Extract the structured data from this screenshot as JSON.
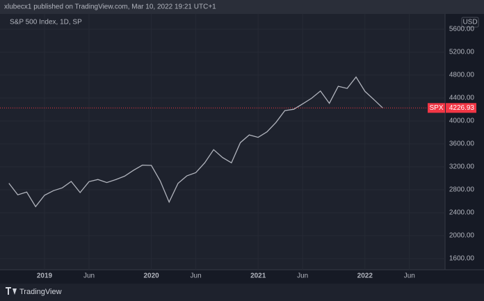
{
  "header": {
    "publisher": "xlubecx1 published on TradingView.com, Mar 10, 2022 19:21 UTC+1",
    "footer": "TradingView"
  },
  "chart_data": {
    "type": "line",
    "title": "S&P 500 Index, 1D, SP",
    "currency": "USD",
    "x": [
      "2018-09",
      "2018-10",
      "2018-11",
      "2018-12",
      "2019-01",
      "2019-02",
      "2019-03",
      "2019-04",
      "2019-05",
      "2019-06",
      "2019-07",
      "2019-08",
      "2019-09",
      "2019-10",
      "2019-11",
      "2019-12",
      "2020-01",
      "2020-02",
      "2020-03",
      "2020-04",
      "2020-05",
      "2020-06",
      "2020-07",
      "2020-08",
      "2020-09",
      "2020-10",
      "2020-11",
      "2020-12",
      "2021-01",
      "2021-02",
      "2021-03",
      "2021-04",
      "2021-05",
      "2021-06",
      "2021-07",
      "2021-08",
      "2021-09",
      "2021-10",
      "2021-11",
      "2021-12",
      "2022-01",
      "2022-02",
      "2022-03"
    ],
    "series": [
      {
        "name": "SPX",
        "color": "#b2b5be",
        "values": [
          2914,
          2711,
          2760,
          2507,
          2704,
          2784,
          2834,
          2946,
          2752,
          2942,
          2980,
          2926,
          2977,
          3038,
          3141,
          3231,
          3226,
          2954,
          2585,
          2912,
          3044,
          3100,
          3271,
          3500,
          3363,
          3270,
          3622,
          3756,
          3714,
          3811,
          3973,
          4181,
          4204,
          4298,
          4395,
          4523,
          4308,
          4605,
          4567,
          4766,
          4516,
          4374,
          4226.93
        ]
      }
    ],
    "last_price": {
      "label": "SPX",
      "value": 4226.93,
      "color": "#f23645"
    },
    "xlim": [
      "2018-08",
      "2022-10"
    ],
    "xticks": [
      {
        "value": "2019-01",
        "label": "2019"
      },
      {
        "value": "2019-06",
        "label": "Jun"
      },
      {
        "value": "2020-01",
        "label": "2020"
      },
      {
        "value": "2020-06",
        "label": "Jun"
      },
      {
        "value": "2021-01",
        "label": "2021"
      },
      {
        "value": "2021-06",
        "label": "Jun"
      },
      {
        "value": "2022-01",
        "label": "2022"
      },
      {
        "value": "2022-06",
        "label": "Jun"
      }
    ],
    "ylim": [
      1406,
      5867
    ],
    "yticks": [
      {
        "value": 1600,
        "label": "1600.00"
      },
      {
        "value": 2000,
        "label": "2000.00"
      },
      {
        "value": 2400,
        "label": "2400.00"
      },
      {
        "value": 2800,
        "label": "2800.00"
      },
      {
        "value": 3200,
        "label": "3200.00"
      },
      {
        "value": 3600,
        "label": "3600.00"
      },
      {
        "value": 4000,
        "label": "4000.00"
      },
      {
        "value": 4400,
        "label": "4400.00"
      },
      {
        "value": 4800,
        "label": "4800.00"
      },
      {
        "value": 5200,
        "label": "5200.00"
      },
      {
        "value": 5600,
        "label": "5600.00"
      }
    ]
  }
}
